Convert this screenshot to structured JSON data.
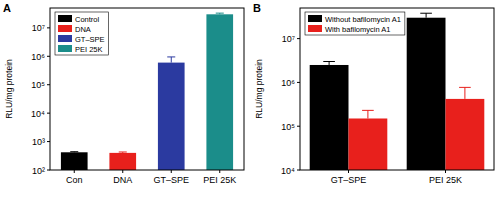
{
  "chart_data": [
    {
      "type": "bar",
      "title": "A",
      "log": "y",
      "ylabel": "RLU/mg protein",
      "categories": [
        "Con",
        "DNA",
        "GT–SPE",
        "PEI 25K"
      ],
      "ylim": [
        100,
        50000000
      ],
      "yticks": [
        {
          "value": 100,
          "label": "10²"
        },
        {
          "value": 1000,
          "label": "10³"
        },
        {
          "value": 10000,
          "label": "10⁴"
        },
        {
          "value": 100000,
          "label": "10⁵"
        },
        {
          "value": 1000000,
          "label": "10⁶"
        },
        {
          "value": 10000000,
          "label": "10⁷"
        }
      ],
      "legend": "upper left",
      "series": [
        {
          "name": "Control",
          "color": "#000000",
          "values": [
            420,
            null,
            null,
            null
          ],
          "errors": [
            20,
            null,
            null,
            null
          ]
        },
        {
          "name": "DNA",
          "color": "#e8201c",
          "values": [
            null,
            400,
            null,
            null
          ],
          "errors": [
            null,
            30,
            null,
            null
          ]
        },
        {
          "name": "GT–SPE",
          "color": "#2b3aa0",
          "values": [
            null,
            null,
            600000,
            null
          ],
          "errors": [
            null,
            null,
            350000,
            null
          ]
        },
        {
          "name": "PEI 25K",
          "color": "#1b8d8a",
          "values": [
            null,
            null,
            null,
            30000000
          ],
          "errors": [
            null,
            null,
            null,
            3000000
          ]
        }
      ]
    },
    {
      "type": "bar",
      "title": "B",
      "log": "y",
      "ylabel": "RLU/mg protein",
      "categories": [
        "GT–SPE",
        "PEI 25K"
      ],
      "ylim": [
        10000,
        50000000
      ],
      "yticks": [
        {
          "value": 10000,
          "label": "10⁴"
        },
        {
          "value": 100000,
          "label": "10⁵"
        },
        {
          "value": 1000000,
          "label": "10⁶"
        },
        {
          "value": 10000000,
          "label": "10⁷"
        }
      ],
      "legend": "upper left",
      "series": [
        {
          "name": "Without bafilomycin A1",
          "color": "#000000",
          "values": [
            2500000,
            30000000
          ],
          "errors": [
            500000,
            8000000
          ]
        },
        {
          "name": "With bafilomycin A1",
          "color": "#e8201c",
          "values": [
            150000,
            420000
          ],
          "errors": [
            80000,
            350000
          ]
        }
      ]
    }
  ]
}
